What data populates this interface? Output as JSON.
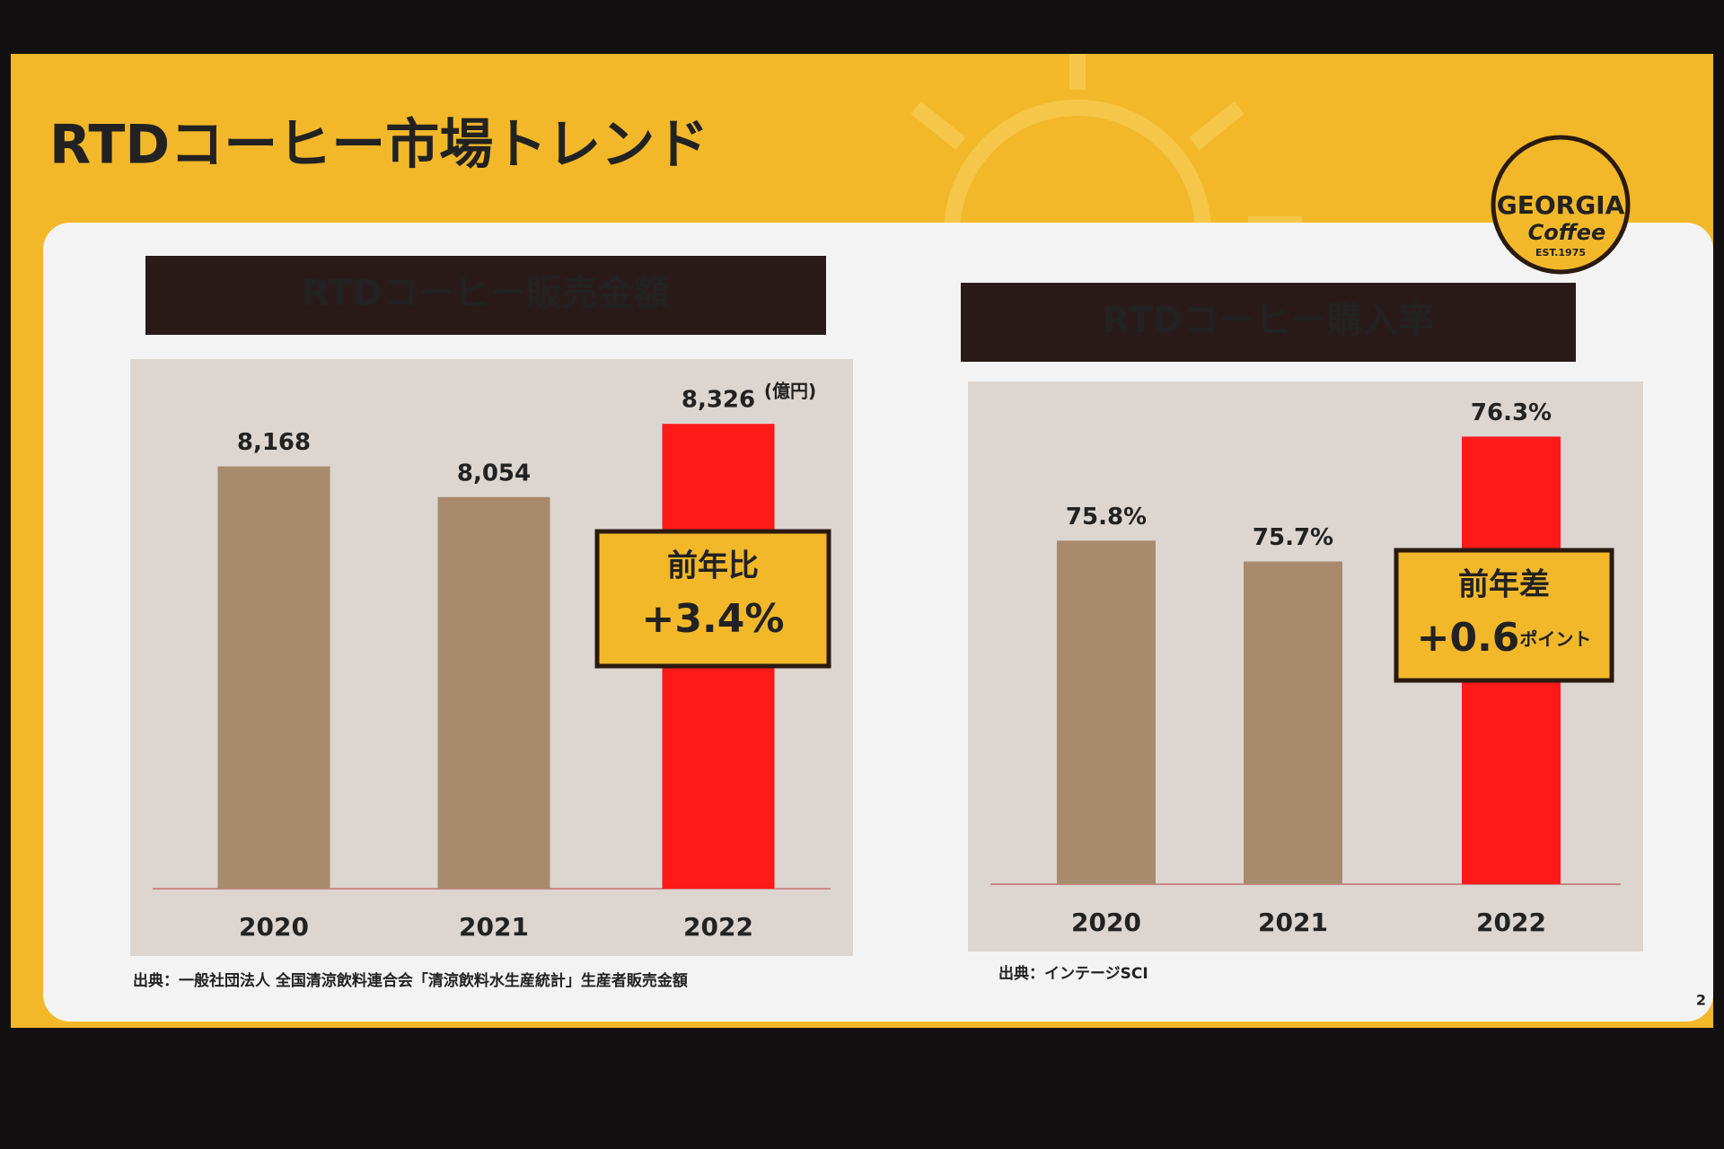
{
  "title": "RTDコーヒー市場トレンド",
  "logo": {
    "brand": "GEORGIA",
    "script": "Coffee",
    "est": "EST.1975"
  },
  "page_number": "2",
  "chart_data": [
    {
      "type": "bar",
      "title": "RTDコーヒー販売金額",
      "unit": "(億円)",
      "categories": [
        "2020",
        "2021",
        "2022"
      ],
      "values": [
        8168,
        8054,
        8326
      ],
      "value_labels": [
        "8,168",
        "8,054",
        "8,326"
      ],
      "colors": [
        "#a88a6c",
        "#a88a6c",
        "#ff1a1a"
      ],
      "ylim": [
        6600,
        8500
      ],
      "callout": {
        "label": "前年比",
        "value": "+3.4%"
      },
      "source": "出典：一般社団法人 全国清涼飲料連合会「清涼飲料水生産統計」生産者販売金額"
    },
    {
      "type": "bar",
      "title": "RTDコーヒー購入率",
      "categories": [
        "2020",
        "2021",
        "2022"
      ],
      "values": [
        75.8,
        75.7,
        76.3
      ],
      "value_labels": [
        "75.8%",
        "75.7%",
        "76.3%"
      ],
      "colors": [
        "#a88a6c",
        "#a88a6c",
        "#ff1a1a"
      ],
      "ylim": [
        74.15,
        76.5
      ],
      "callout": {
        "label": "前年差",
        "value": "+0.6",
        "unit": "ポイント"
      },
      "source": "出典：インテージSCI"
    }
  ]
}
